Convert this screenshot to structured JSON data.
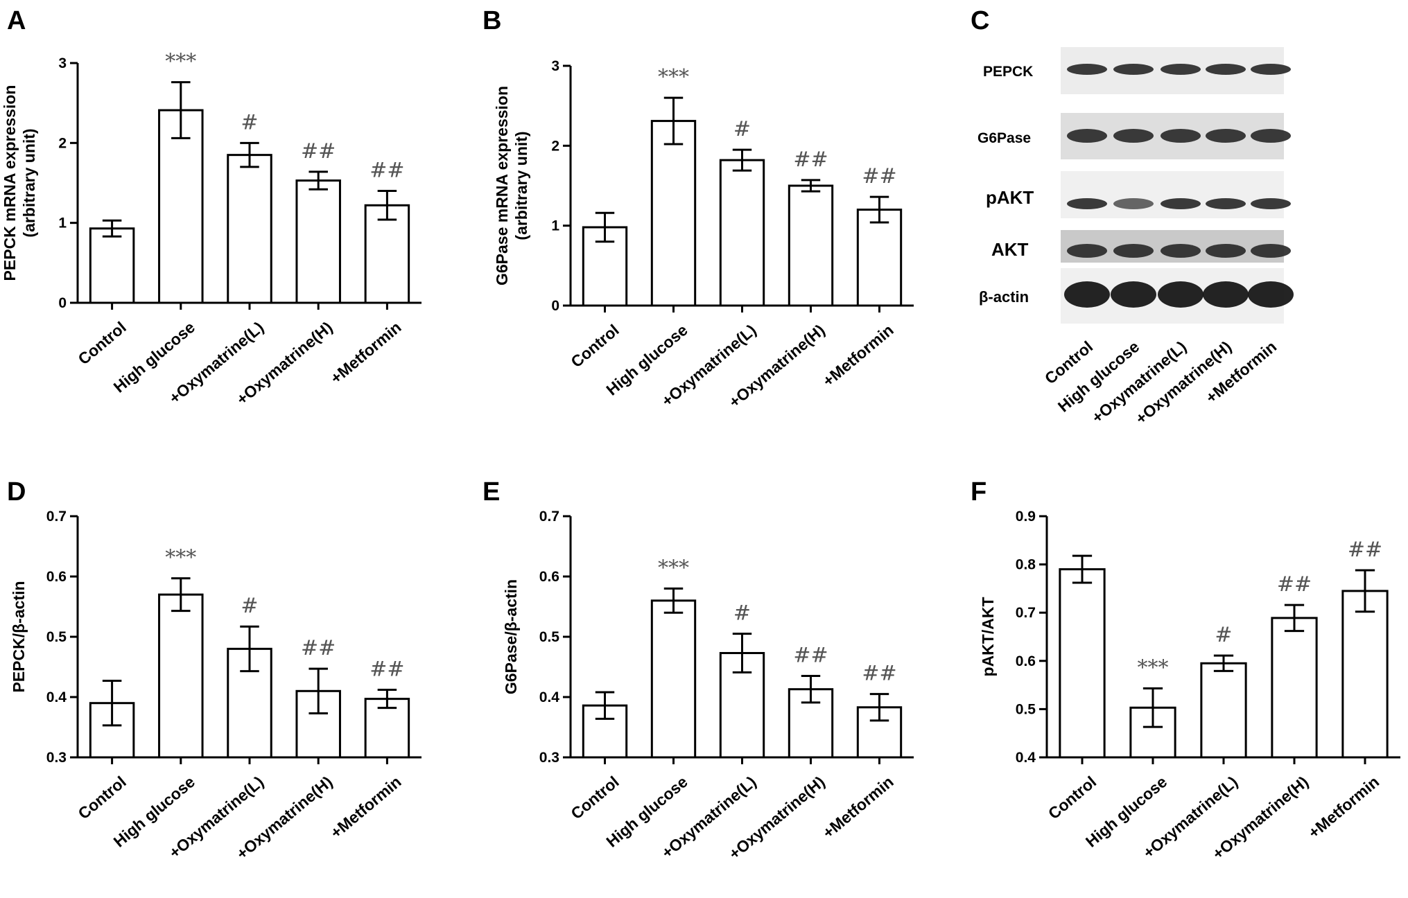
{
  "categories": [
    "Control",
    "High glucose",
    "+Oxymatrine(L)",
    "+Oxymatrine(H)",
    "+Metformin"
  ],
  "panels": {
    "A": {
      "letter": "A",
      "ylabel_lines": [
        "PEPCK mRNA expression",
        "(arbitrary unit)"
      ]
    },
    "B": {
      "letter": "B",
      "ylabel_lines": [
        "G6Pase mRNA expression",
        "(arbitrary unit)"
      ]
    },
    "C": {
      "letter": "C"
    },
    "D": {
      "letter": "D",
      "ylabel_lines": [
        "PEPCK/β-actin"
      ]
    },
    "E": {
      "letter": "E",
      "ylabel_lines": [
        "G6Pase/β-actin"
      ]
    },
    "F": {
      "letter": "F",
      "ylabel_lines": [
        "pAKT/AKT"
      ]
    }
  },
  "western_blot": {
    "rows": [
      "PEPCK",
      "G6Pase",
      "pAKT",
      "AKT",
      "β-actin"
    ],
    "lanes": [
      "Control",
      "High glucose",
      "+Oxymatrine(L)",
      "+Oxymatrine(H)",
      "+Metformin"
    ]
  },
  "chart_data": [
    {
      "panel": "A",
      "type": "bar",
      "categories": [
        "Control",
        "High glucose",
        "+Oxymatrine(L)",
        "+Oxymatrine(H)",
        "+Metformin"
      ],
      "values": [
        0.93,
        2.41,
        1.85,
        1.53,
        1.22
      ],
      "errors": [
        0.1,
        0.35,
        0.15,
        0.11,
        0.18
      ],
      "annotations": [
        "",
        "***",
        "#",
        "##",
        "##"
      ],
      "ylim": [
        0,
        3
      ],
      "yticks": [
        "0",
        "1",
        "2",
        "3"
      ],
      "ytick_values": [
        0,
        1,
        2,
        3
      ],
      "ylabel": "PEPCK mRNA expression (arbitrary unit)"
    },
    {
      "panel": "B",
      "type": "bar",
      "categories": [
        "Control",
        "High glucose",
        "+Oxymatrine(L)",
        "+Oxymatrine(H)",
        "+Metformin"
      ],
      "values": [
        0.98,
        2.31,
        1.82,
        1.5,
        1.2
      ],
      "errors": [
        0.18,
        0.29,
        0.13,
        0.07,
        0.16
      ],
      "annotations": [
        "",
        "***",
        "#",
        "##",
        "##"
      ],
      "ylim": [
        0,
        3
      ],
      "yticks": [
        "0",
        "1",
        "2",
        "3"
      ],
      "ytick_values": [
        0,
        1,
        2,
        3
      ],
      "ylabel": "G6Pase mRNA expression (arbitrary unit)"
    },
    {
      "panel": "D",
      "type": "bar",
      "categories": [
        "Control",
        "High glucose",
        "+Oxymatrine(L)",
        "+Oxymatrine(H)",
        "+Metformin"
      ],
      "values": [
        0.39,
        0.57,
        0.48,
        0.41,
        0.397
      ],
      "errors": [
        0.037,
        0.027,
        0.037,
        0.037,
        0.015
      ],
      "annotations": [
        "",
        "***",
        "#",
        "##",
        "##"
      ],
      "ylim": [
        0.3,
        0.7
      ],
      "yticks": [
        "0.3",
        "0.4",
        "0.5",
        "0.6",
        "0.7"
      ],
      "ytick_values": [
        0.3,
        0.4,
        0.5,
        0.6,
        0.7
      ],
      "ylabel": "PEPCK/β-actin"
    },
    {
      "panel": "E",
      "type": "bar",
      "categories": [
        "Control",
        "High glucose",
        "+Oxymatrine(L)",
        "+Oxymatrine(H)",
        "+Metformin"
      ],
      "values": [
        0.386,
        0.56,
        0.473,
        0.413,
        0.383
      ],
      "errors": [
        0.022,
        0.02,
        0.032,
        0.022,
        0.022
      ],
      "annotations": [
        "",
        "***",
        "#",
        "##",
        "##"
      ],
      "ylim": [
        0.3,
        0.7
      ],
      "yticks": [
        "0.3",
        "0.4",
        "0.5",
        "0.6",
        "0.7"
      ],
      "ytick_values": [
        0.3,
        0.4,
        0.5,
        0.6,
        0.7
      ],
      "ylabel": "G6Pase/β-actin"
    },
    {
      "panel": "F",
      "type": "bar",
      "categories": [
        "Control",
        "High glucose",
        "+Oxymatrine(L)",
        "+Oxymatrine(H)",
        "+Metformin"
      ],
      "values": [
        0.79,
        0.503,
        0.595,
        0.689,
        0.745
      ],
      "errors": [
        0.028,
        0.04,
        0.016,
        0.027,
        0.043
      ],
      "annotations": [
        "",
        "***",
        "#",
        "##",
        "##"
      ],
      "ylim": [
        0.4,
        0.9
      ],
      "yticks": [
        "0.4",
        "0.5",
        "0.6",
        "0.7",
        "0.8",
        "0.9"
      ],
      "ytick_values": [
        0.4,
        0.5,
        0.6,
        0.7,
        0.8,
        0.9
      ],
      "ylabel": "pAKT/AKT"
    }
  ]
}
